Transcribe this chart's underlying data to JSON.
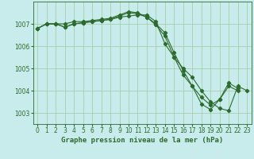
{
  "title": "Graphe pression niveau de la mer (hPa)",
  "background_color": "#c8ecec",
  "grid_color": "#a0c8a0",
  "line_color": "#2d6a2d",
  "hours": [
    0,
    1,
    2,
    3,
    4,
    5,
    6,
    7,
    8,
    9,
    10,
    11,
    12,
    13,
    14,
    15,
    16,
    17,
    18,
    19,
    20,
    21,
    22,
    23
  ],
  "series1": [
    1006.8,
    1007.0,
    1007.0,
    1006.85,
    1007.0,
    1007.05,
    1007.1,
    1007.15,
    1007.2,
    1007.3,
    1007.35,
    1007.4,
    1007.4,
    1007.1,
    1006.1,
    1005.5,
    1005.0,
    1004.6,
    1004.0,
    1003.5,
    1003.2,
    1003.1,
    1004.2,
    1004.0
  ],
  "series2": [
    1006.8,
    1007.0,
    1007.0,
    1006.85,
    1007.0,
    1007.05,
    1007.1,
    1007.15,
    1007.2,
    1007.35,
    1007.5,
    1007.45,
    1007.3,
    1007.0,
    1006.6,
    1005.7,
    1004.9,
    1004.2,
    1003.7,
    1003.35,
    1003.6,
    1004.2,
    1004.0,
    null
  ],
  "series3": [
    1006.8,
    1007.0,
    1007.0,
    1007.0,
    1007.1,
    1007.1,
    1007.15,
    1007.2,
    1007.25,
    1007.4,
    1007.55,
    1007.5,
    1007.3,
    1006.95,
    1006.45,
    1005.5,
    1004.7,
    1004.2,
    1003.4,
    1003.15,
    1003.6,
    1004.35,
    1004.1,
    null
  ],
  "ylim": [
    1002.5,
    1008.0
  ],
  "yticks": [
    1003,
    1004,
    1005,
    1006,
    1007
  ],
  "xlim": [
    -0.5,
    23.5
  ],
  "xticks": [
    0,
    1,
    2,
    3,
    4,
    5,
    6,
    7,
    8,
    9,
    10,
    11,
    12,
    13,
    14,
    15,
    16,
    17,
    18,
    19,
    20,
    21,
    22,
    23
  ],
  "title_fontsize": 6.5,
  "tick_fontsize": 5.5,
  "marker_size": 2.2,
  "line_width": 0.8
}
